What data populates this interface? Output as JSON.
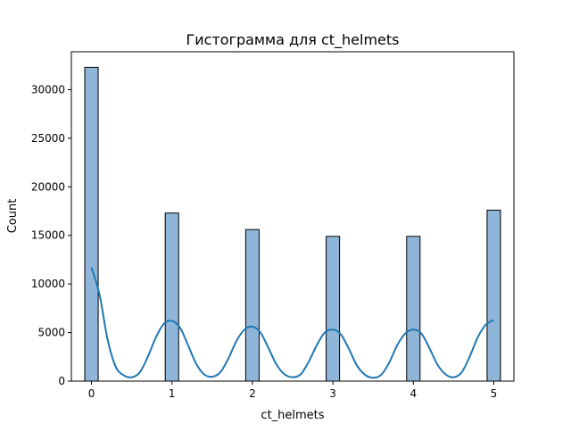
{
  "chart_data": {
    "type": "bar",
    "title": "Гистограмма для ct_helmets",
    "xlabel": "ct_helmets",
    "ylabel": "Count",
    "xlim": [
      -0.25,
      5.25
    ],
    "ylim": [
      0,
      33900
    ],
    "xticks": [
      0,
      1,
      2,
      3,
      4,
      5
    ],
    "yticks": [
      0,
      5000,
      10000,
      15000,
      20000,
      25000,
      30000
    ],
    "bar_width": 0.1667,
    "bars": [
      {
        "x": 0,
        "value": 32300
      },
      {
        "x": 1,
        "value": 17300
      },
      {
        "x": 2,
        "value": 15600
      },
      {
        "x": 3,
        "value": 14900
      },
      {
        "x": 4,
        "value": 14900
      },
      {
        "x": 5,
        "value": 17600
      }
    ],
    "kde": {
      "x": [
        0,
        0.1,
        0.2,
        0.3,
        0.4,
        0.5,
        0.6,
        0.7,
        0.8,
        0.9,
        1.0,
        1.1,
        1.2,
        1.3,
        1.4,
        1.5,
        1.6,
        1.7,
        1.8,
        1.9,
        2.0,
        2.1,
        2.2,
        2.3,
        2.4,
        2.5,
        2.6,
        2.7,
        2.8,
        2.9,
        3.0,
        3.1,
        3.2,
        3.3,
        3.4,
        3.5,
        3.6,
        3.7,
        3.8,
        3.9,
        4.0,
        4.1,
        4.2,
        4.3,
        4.4,
        4.5,
        4.6,
        4.7,
        4.8,
        4.9,
        5.0
      ],
      "y": [
        11700,
        8900,
        4300,
        1500,
        600,
        400,
        900,
        2500,
        4500,
        5900,
        6200,
        5500,
        3700,
        1800,
        700,
        450,
        900,
        2300,
        4100,
        5300,
        5600,
        5000,
        3400,
        1700,
        700,
        400,
        700,
        2000,
        3700,
        5000,
        5300,
        4800,
        3300,
        1600,
        650,
        350,
        650,
        1900,
        3700,
        4900,
        5300,
        4900,
        3400,
        1700,
        700,
        400,
        900,
        2500,
        4500,
        5800,
        6300
      ]
    },
    "colors": {
      "bar_fill": "#8fb6d8",
      "bar_edge": "#000000",
      "kde_line": "#1f77b4"
    },
    "grid": false,
    "legend": "none"
  }
}
